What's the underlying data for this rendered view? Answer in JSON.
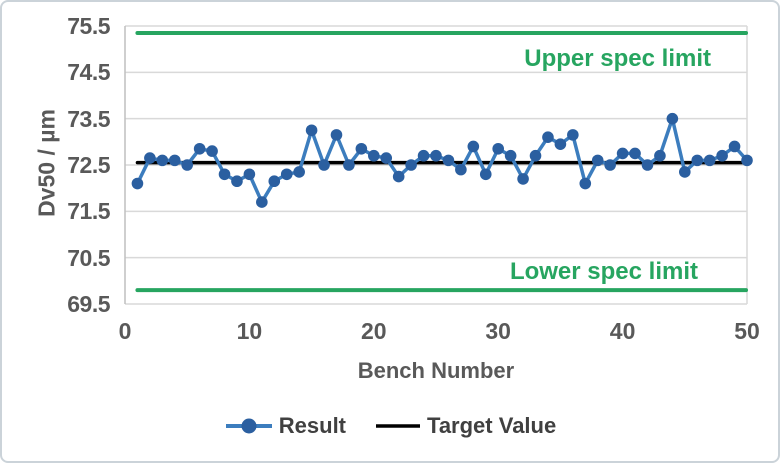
{
  "chart_data": {
    "type": "line",
    "title": "",
    "xlabel": "Bench Number",
    "ylabel": "Dv50 / µm",
    "xlim": [
      0,
      50
    ],
    "ylim": [
      69.5,
      75.5
    ],
    "x_ticks": [
      0,
      10,
      20,
      30,
      40,
      50
    ],
    "y_ticks": [
      75.5,
      74.5,
      73.5,
      72.5,
      71.5,
      70.5,
      69.5
    ],
    "grid": "horizontal",
    "legend_position": "bottom",
    "colors": {
      "result_line": "#3C7DBE",
      "result_marker": "#2B5FA0",
      "target_line": "#000000",
      "spec_line": "#27A560",
      "gridline": "#D9D9D9",
      "axis_line": "#BFBFBF",
      "tick_text": "#595959",
      "legend_text": "#404040"
    },
    "annotations": {
      "upper": "Upper spec limit",
      "lower": "Lower spec limit"
    },
    "series": [
      {
        "name": "Result",
        "type": "line-markers",
        "x": [
          1,
          2,
          3,
          4,
          5,
          6,
          7,
          8,
          9,
          10,
          11,
          12,
          13,
          14,
          15,
          16,
          17,
          18,
          19,
          20,
          21,
          22,
          23,
          24,
          25,
          26,
          27,
          28,
          29,
          30,
          31,
          32,
          33,
          34,
          35,
          36,
          37,
          38,
          39,
          40,
          41,
          42,
          43,
          44,
          45,
          46,
          47,
          48,
          49,
          50
        ],
        "values": [
          72.1,
          72.65,
          72.6,
          72.6,
          72.5,
          72.85,
          72.8,
          72.3,
          72.15,
          72.3,
          71.7,
          72.15,
          72.3,
          72.35,
          73.25,
          72.5,
          73.15,
          72.5,
          72.85,
          72.7,
          72.65,
          72.25,
          72.5,
          72.7,
          72.7,
          72.6,
          72.4,
          72.9,
          72.3,
          72.85,
          72.7,
          72.2,
          72.7,
          73.1,
          72.95,
          73.15,
          72.1,
          72.6,
          72.5,
          72.75,
          72.75,
          72.5,
          72.7,
          73.5,
          72.35,
          72.6,
          72.6,
          72.7,
          72.9,
          72.6
        ]
      },
      {
        "name": "Target Value",
        "type": "hline",
        "value": 72.55
      },
      {
        "name": "Upper spec limit",
        "type": "hline",
        "value": 75.35
      },
      {
        "name": "Lower spec limit",
        "type": "hline",
        "value": 69.8
      }
    ]
  }
}
